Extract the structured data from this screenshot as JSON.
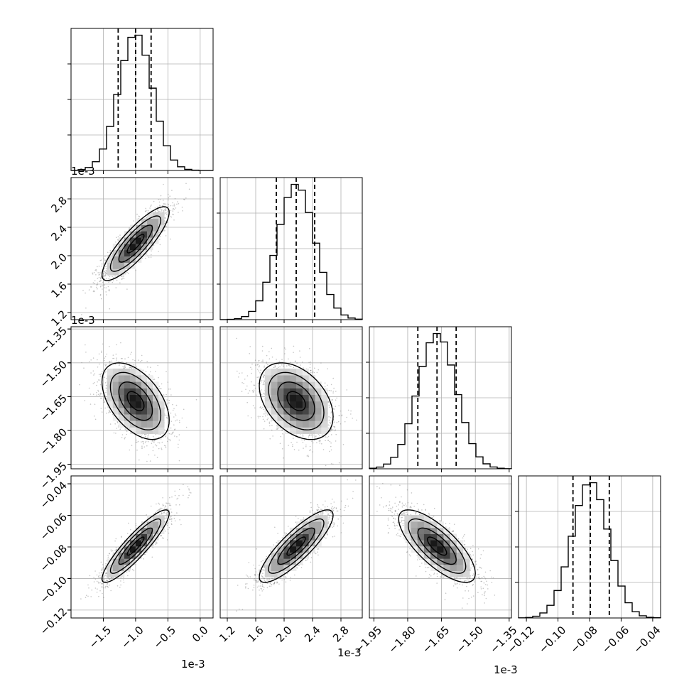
{
  "chart_data": {
    "type": "corner",
    "parameters": [
      {
        "index": 0,
        "range": [
          -0.002,
          0.0002
        ],
        "ticks": [
          -0.0015,
          -0.001,
          -0.0005,
          0.0
        ],
        "tick_labels": [
          "−1.5",
          "−1.0",
          "−0.5",
          "0.0"
        ],
        "offset_label": "1e-3",
        "mean": -0.001,
        "sigma": 0.00026,
        "quantiles": [
          -0.00127,
          -0.001,
          -0.00076
        ]
      },
      {
        "index": 1,
        "range": [
          0.0011,
          0.0031
        ],
        "ticks": [
          0.0012,
          0.0016,
          0.002,
          0.0024,
          0.0028
        ],
        "tick_labels": [
          "1.2",
          "1.6",
          "2.0",
          "2.4",
          "2.8"
        ],
        "offset_label": "1e-3",
        "mean": 0.00217,
        "sigma": 0.00026,
        "quantiles": [
          0.00189,
          0.00217,
          0.00243
        ]
      },
      {
        "index": 2,
        "range": [
          -0.00197,
          -0.00134
        ],
        "ticks": [
          -0.00195,
          -0.0018,
          -0.00165,
          -0.0015,
          -0.00135
        ],
        "tick_labels": [
          "−1.95",
          "−1.80",
          "−1.65",
          "−1.50",
          "−1.35"
        ],
        "offset_label": "1e-3",
        "mean": -0.00167,
        "sigma": 8.5e-05,
        "quantiles": [
          -0.001755,
          -0.00167,
          -0.001585
        ]
      },
      {
        "index": 3,
        "range": [
          -0.125,
          -0.035
        ],
        "ticks": [
          -0.12,
          -0.1,
          -0.08,
          -0.06,
          -0.04
        ],
        "tick_labels": [
          "−0.12",
          "−0.10",
          "−0.08",
          "−0.06",
          "−0.04"
        ],
        "offset_label": "",
        "mean": -0.0795,
        "sigma": 0.0115,
        "quantiles": [
          -0.0905,
          -0.0795,
          -0.0675
        ]
      }
    ],
    "correlations": [
      {
        "pair": [
          1,
          0
        ],
        "rho": 0.85
      },
      {
        "pair": [
          2,
          0
        ],
        "rho": -0.5
      },
      {
        "pair": [
          2,
          1
        ],
        "rho": -0.4
      },
      {
        "pair": [
          3,
          0
        ],
        "rho": 0.9
      },
      {
        "pair": [
          3,
          1
        ],
        "rho": 0.85
      },
      {
        "pair": [
          3,
          2
        ],
        "rho": -0.75
      }
    ],
    "histogram_bins": 20,
    "histogram_y_ticks": [
      0.25,
      0.5,
      0.75
    ],
    "grid": true,
    "contour_levels": [
      0.5,
      1.0,
      1.5,
      2.0
    ],
    "colors": {
      "ink": "#000000",
      "grid": "#b0b0b0",
      "scatter": "#808080"
    }
  }
}
